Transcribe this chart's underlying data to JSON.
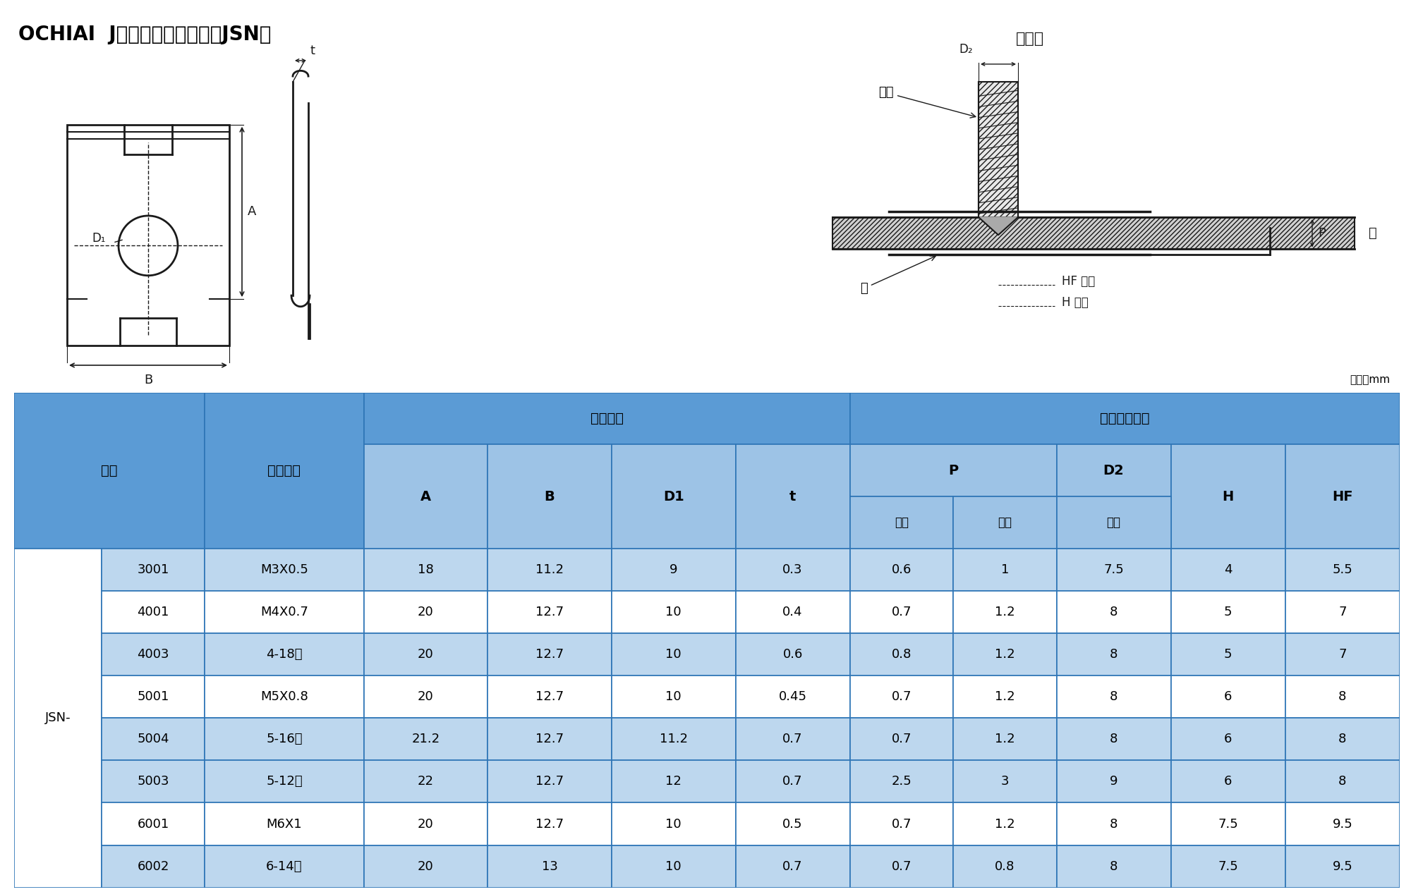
{
  "title": "OCHIAI  J形螺紋式快速螺母（JSN）",
  "unit_label": "单位：mm",
  "rows": [
    [
      "JSN-",
      "3001",
      "M3X0.5",
      "18",
      "11.2",
      "9",
      "0.3",
      "0.6",
      "1",
      "7.5",
      "4",
      "5.5"
    ],
    [
      "",
      "4001",
      "M4X0.7",
      "20",
      "12.7",
      "10",
      "0.4",
      "0.7",
      "1.2",
      "8",
      "5",
      "7"
    ],
    [
      "",
      "4003",
      "4-18峰",
      "20",
      "12.7",
      "10",
      "0.6",
      "0.8",
      "1.2",
      "8",
      "5",
      "7"
    ],
    [
      "",
      "5001",
      "M5X0.8",
      "20",
      "12.7",
      "10",
      "0.45",
      "0.7",
      "1.2",
      "8",
      "6",
      "8"
    ],
    [
      "",
      "5004",
      "5-16峰",
      "21.2",
      "12.7",
      "11.2",
      "0.7",
      "0.7",
      "1.2",
      "8",
      "6",
      "8"
    ],
    [
      "",
      "5003",
      "5-12峰",
      "22",
      "12.7",
      "12",
      "0.7",
      "2.5",
      "3",
      "9",
      "6",
      "8"
    ],
    [
      "",
      "6001",
      "M6X1",
      "20",
      "12.7",
      "10",
      "0.5",
      "0.7",
      "1.2",
      "8",
      "7.5",
      "9.5"
    ],
    [
      "",
      "6002",
      "6-14峰",
      "20",
      "13",
      "10",
      "0.7",
      "0.7",
      "0.8",
      "8",
      "7.5",
      "9.5"
    ]
  ],
  "shaded_rows": [
    0,
    2,
    4,
    5,
    7
  ],
  "header_bg": "#5b9bd5",
  "header_subgroup_bg": "#9dc3e6",
  "row_bg_shaded": "#bdd7ee",
  "row_bg_white": "#ffffff",
  "border_color": "#2e75b6",
  "text_color": "#000000",
  "bg_color": "#ffffff",
  "lbl_xing_hao": "型号",
  "lbl_shiyong_luosi": "适用螺丝",
  "lbl_luomu_chicun": "螺母尺寸",
  "lbl_shiyong_ban": "适用板的尺寸",
  "lbl_A": "A",
  "lbl_B": "B",
  "lbl_D1": "D1",
  "lbl_t": "t",
  "lbl_P": "P",
  "lbl_D2": "D2",
  "lbl_H": "H",
  "lbl_HF": "HF",
  "lbl_zuixiao": "最小",
  "lbl_zuida": "最大",
  "lbl_zuida2": "最大",
  "lbl_shiyong_zhuang": "使用状",
  "lbl_luosi": "螺丝",
  "lbl_luo": "螺",
  "lbl_ban": "板",
  "lbl_shanggkong": "上孔",
  "lbl_xiakong": "下孔",
  "lbl_HF2": "HF",
  "lbl_H2": "H",
  "lbl_D2_2": "D₂",
  "lbl_P2": "P"
}
